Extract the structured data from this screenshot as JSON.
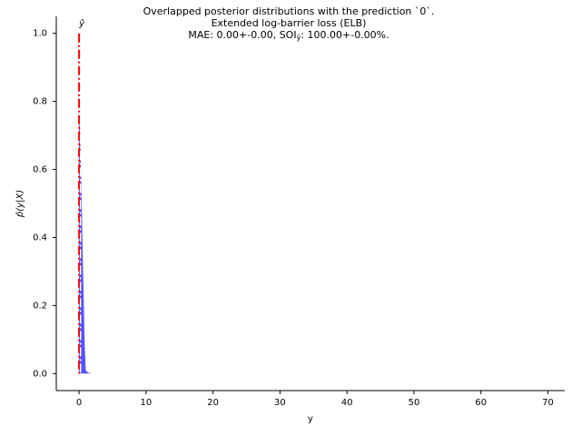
{
  "chart_data": {
    "type": "area",
    "title_lines": [
      "Overlapped posterior distributions with the prediction `0`.",
      "Extended log-barrier loss (ELB)",
      "MAE: 0.00+-0.00, SOI",
      "ŷ",
      ": 100.00+-0.00%."
    ],
    "xlabel": "y",
    "ylabel": "p̂(y|X)",
    "xlim": [
      -3.4,
      72.5
    ],
    "ylim": [
      -0.05,
      1.05
    ],
    "x_ticks": [
      0,
      10,
      20,
      30,
      40,
      50,
      60,
      70
    ],
    "y_ticks": [
      "0.0",
      "0.2",
      "0.4",
      "0.6",
      "0.8",
      "1.0"
    ],
    "y_tick_values": [
      0.0,
      0.2,
      0.4,
      0.6,
      0.8,
      1.0
    ],
    "prediction_line": {
      "x": 0,
      "label": "ŷ",
      "color": "#ff0000"
    },
    "distribution": {
      "color": "#4040ff",
      "x": [
        0,
        0.15,
        0.35,
        0.6,
        0.85,
        1.0,
        1.3,
        1.9
      ],
      "y": [
        0.75,
        0.72,
        0.55,
        0.3,
        0.08,
        0.01,
        0.003,
        0.0
      ]
    },
    "white_line_color": "#ffffff",
    "grid": false,
    "legend": "none"
  }
}
